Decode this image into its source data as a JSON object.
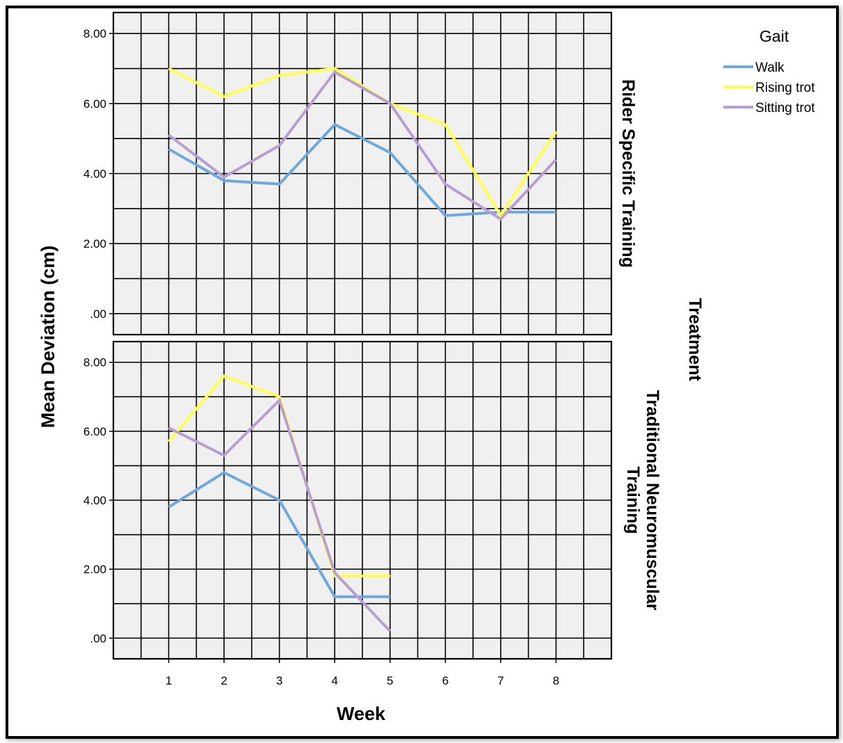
{
  "chart_data": {
    "type": "line",
    "xlabel": "Week",
    "ylabel": "Mean Deviation (cm)",
    "x_ticks": [
      "1",
      "2",
      "3",
      "4",
      "5",
      "6",
      "7",
      "8"
    ],
    "y_ticks": [
      ".00",
      "2.00",
      "4.00",
      "6.00",
      "8.00"
    ],
    "ylim": [
      -0.6,
      8.6
    ],
    "xlim": [
      0,
      9
    ],
    "grid": true,
    "grid_y_step": 1,
    "facet_title": "Treatment",
    "legend": {
      "title": "Gait",
      "position": "top-right"
    },
    "series_colors": {
      "Walk": "#6fa8dc",
      "Rising trot": "#ffff4d",
      "Sitting trot": "#b79fd1"
    },
    "panels": [
      {
        "label": "Rider Specific Training",
        "series": [
          {
            "name": "Walk",
            "x": [
              1,
              2,
              3,
              4,
              5,
              6,
              7,
              8
            ],
            "values": [
              4.7,
              3.8,
              3.7,
              5.4,
              4.6,
              2.8,
              2.9,
              2.9
            ]
          },
          {
            "name": "Rising trot",
            "x": [
              1,
              2,
              3,
              4,
              5,
              6,
              7,
              8
            ],
            "values": [
              7.0,
              6.2,
              6.8,
              7.0,
              6.0,
              5.4,
              2.8,
              5.2
            ]
          },
          {
            "name": "Sitting trot",
            "x": [
              1,
              2,
              3,
              4,
              5,
              6,
              7,
              8
            ],
            "values": [
              5.1,
              3.9,
              4.8,
              6.9,
              6.0,
              3.7,
              2.7,
              4.4
            ]
          }
        ]
      },
      {
        "label": "Traditional Neuromuscular Training",
        "series": [
          {
            "name": "Walk",
            "x": [
              1,
              2,
              3,
              4,
              5
            ],
            "values": [
              3.8,
              4.8,
              4.0,
              1.2,
              1.2
            ]
          },
          {
            "name": "Rising trot",
            "x": [
              1,
              2,
              3,
              4,
              5
            ],
            "values": [
              5.7,
              7.6,
              7.0,
              1.8,
              1.8
            ]
          },
          {
            "name": "Sitting trot",
            "x": [
              1,
              2,
              3,
              4,
              5
            ],
            "values": [
              6.1,
              5.3,
              6.9,
              1.9,
              0.2
            ]
          }
        ]
      }
    ]
  }
}
